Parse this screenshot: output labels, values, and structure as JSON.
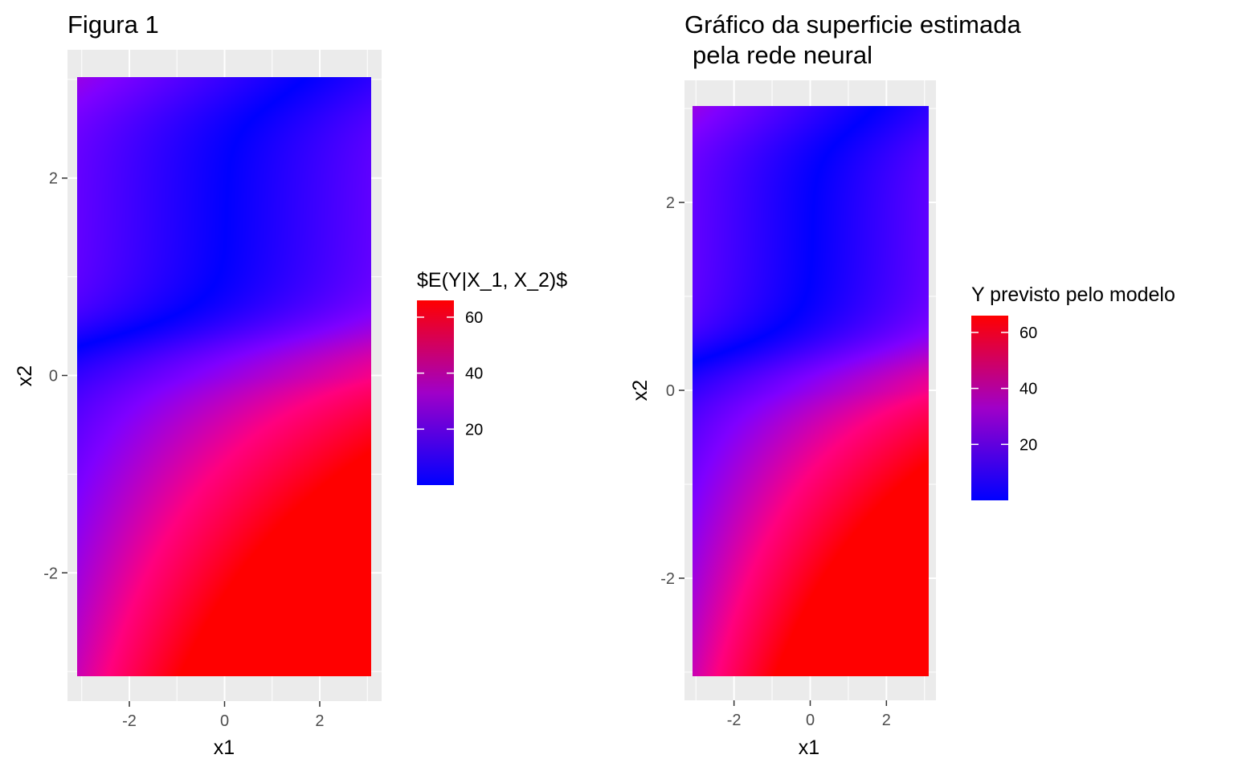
{
  "chart_data": [
    {
      "type": "heatmap",
      "title": "Figura 1",
      "subtitle": "",
      "xlabel": "x1",
      "ylabel": "x2",
      "xlim": [
        -3.3,
        3.3
      ],
      "ylim": [
        -3.3,
        3.3
      ],
      "data_range": [
        -3,
        3
      ],
      "x_ticks": [
        -2,
        0,
        2
      ],
      "y_ticks": [
        -2,
        0,
        2
      ],
      "grid": true,
      "legend": {
        "title": "$E(Y|X_1, X_2)$",
        "position": "right",
        "ticks": [
          20,
          40,
          60
        ],
        "range": [
          0,
          66
        ],
        "low_color": "#0000ff",
        "high_color": "#ff0000"
      }
    },
    {
      "type": "heatmap",
      "title": "Gráfico da superficie estimada",
      "subtitle": "pela rede neural",
      "xlabel": "x1",
      "ylabel": "x2",
      "xlim": [
        -3.3,
        3.3
      ],
      "ylim": [
        -3.3,
        3.3
      ],
      "data_range": [
        -3,
        3
      ],
      "x_ticks": [
        -2,
        0,
        2
      ],
      "y_ticks": [
        -2,
        0,
        2
      ],
      "grid": true,
      "legend": {
        "title": "Y previsto pelo modelo",
        "position": "right",
        "ticks": [
          20,
          40,
          60
        ],
        "range": [
          0,
          66
        ],
        "low_color": "#0000ff",
        "high_color": "#ff0000"
      }
    }
  ]
}
